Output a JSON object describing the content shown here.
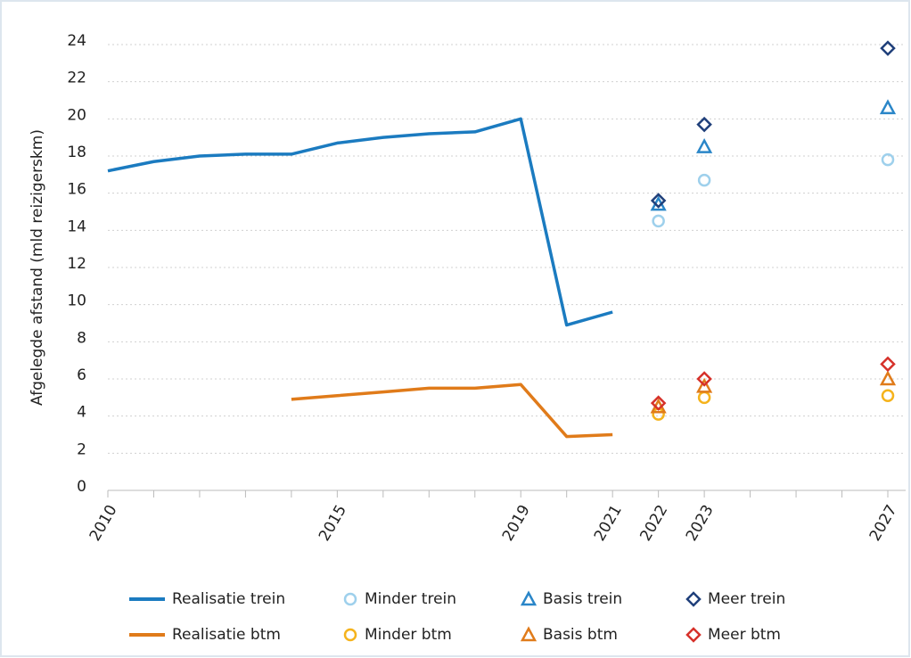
{
  "chart_data": {
    "type": "line",
    "ylabel": "Afgelegde afstand (mld reizigerskm)",
    "xlim": [
      2010,
      2027
    ],
    "ylim": [
      0,
      24
    ],
    "yticks": [
      0,
      2,
      4,
      6,
      8,
      10,
      12,
      14,
      16,
      18,
      20,
      22,
      24
    ],
    "xticks": [
      2010,
      {
        "value": 2011,
        "label": null
      },
      {
        "value": 2012,
        "label": null
      },
      {
        "value": 2013,
        "label": null
      },
      {
        "value": 2014,
        "label": null
      },
      2015,
      {
        "value": 2016,
        "label": null
      },
      {
        "value": 2017,
        "label": null
      },
      {
        "value": 2018,
        "label": null
      },
      2019,
      {
        "value": 2020,
        "label": null
      },
      2021,
      2022,
      2023,
      {
        "value": 2024,
        "label": null
      },
      {
        "value": 2025,
        "label": null
      },
      {
        "value": 2026,
        "label": null
      },
      2027
    ],
    "grid": true,
    "legend": "bottom",
    "series": [
      {
        "name": "Realisatie trein",
        "color": "#1b7bc0",
        "marker": "line",
        "x": [
          2010,
          2011,
          2012,
          2013,
          2014,
          2015,
          2016,
          2017,
          2018,
          2019,
          2020,
          2021
        ],
        "values": [
          17.2,
          17.7,
          18.0,
          18.1,
          18.1,
          18.7,
          19.0,
          19.2,
          19.3,
          20.0,
          8.9,
          9.6
        ]
      },
      {
        "name": "Minder trein",
        "color": "#9ed0ec",
        "marker": "circle",
        "x": [
          2022,
          2023,
          2027
        ],
        "values": [
          14.5,
          16.7,
          17.8
        ]
      },
      {
        "name": "Basis trein",
        "color": "#2a86c8",
        "marker": "triangle",
        "x": [
          2022,
          2023,
          2027
        ],
        "values": [
          15.4,
          18.5,
          20.6
        ]
      },
      {
        "name": "Meer trein",
        "color": "#1f3f7a",
        "marker": "diamond",
        "x": [
          2022,
          2023,
          2027
        ],
        "values": [
          15.6,
          19.7,
          23.8
        ]
      },
      {
        "name": "Realisatie btm",
        "color": "#e07b1a",
        "marker": "line",
        "x": [
          2014,
          2015,
          2016,
          2017,
          2018,
          2019,
          2020,
          2021
        ],
        "values": [
          4.9,
          5.1,
          5.3,
          5.5,
          5.5,
          5.7,
          2.9,
          3.0
        ]
      },
      {
        "name": "Minder btm",
        "color": "#f5b31c",
        "marker": "circle",
        "x": [
          2022,
          2023,
          2027
        ],
        "values": [
          4.1,
          5.0,
          5.1
        ]
      },
      {
        "name": "Basis btm",
        "color": "#e07b1a",
        "marker": "triangle",
        "x": [
          2022,
          2023,
          2027
        ],
        "values": [
          4.5,
          5.6,
          6.0
        ]
      },
      {
        "name": "Meer btm",
        "color": "#d6312a",
        "marker": "diamond",
        "x": [
          2022,
          2023,
          2027
        ],
        "values": [
          4.7,
          6.0,
          6.8
        ]
      }
    ]
  }
}
